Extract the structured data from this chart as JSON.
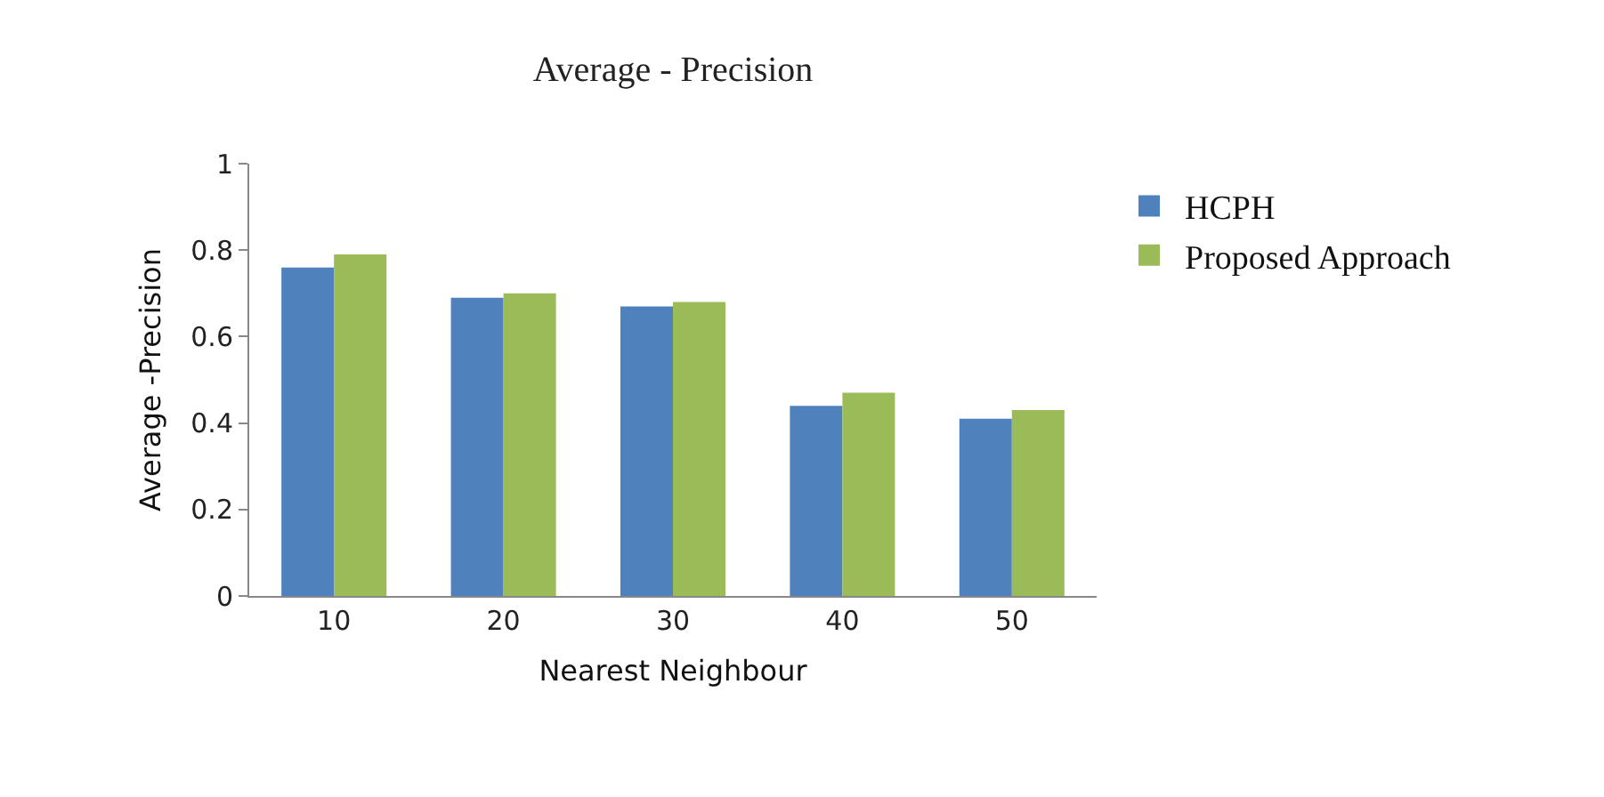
{
  "chart_data": {
    "type": "bar",
    "title": "Average - Precision",
    "xlabel": "Nearest Neighbour",
    "ylabel": "Average -Precision",
    "categories": [
      "10",
      "20",
      "30",
      "40",
      "50"
    ],
    "series": [
      {
        "name": "HCPH",
        "color": "#4f81bd",
        "values": [
          0.76,
          0.69,
          0.67,
          0.44,
          0.41
        ]
      },
      {
        "name": "Proposed Approach",
        "color": "#9bbb59",
        "values": [
          0.79,
          0.7,
          0.68,
          0.47,
          0.43
        ]
      }
    ],
    "ylim": [
      0,
      1
    ],
    "yticks": [
      0,
      0.2,
      0.4,
      0.6,
      0.8,
      1
    ],
    "grid": false,
    "legend": "top right"
  }
}
